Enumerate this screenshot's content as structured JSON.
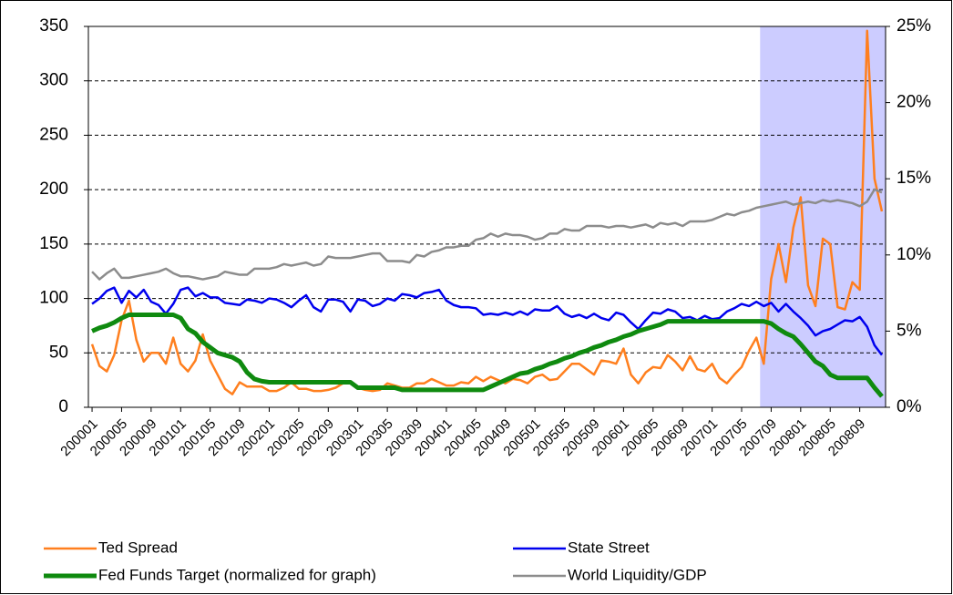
{
  "chart_data": {
    "type": "line",
    "categories": [
      "200001",
      null,
      null,
      null,
      "200005",
      null,
      null,
      null,
      "200009",
      null,
      null,
      null,
      "200101",
      null,
      null,
      null,
      "200105",
      null,
      null,
      null,
      "200109",
      null,
      null,
      null,
      "200201",
      null,
      null,
      null,
      "200205",
      null,
      null,
      null,
      "200209",
      null,
      null,
      null,
      "200301",
      null,
      null,
      null,
      "200305",
      null,
      null,
      null,
      "200309",
      null,
      null,
      null,
      "200401",
      null,
      null,
      null,
      "200405",
      null,
      null,
      null,
      "200409",
      null,
      null,
      null,
      "200501",
      null,
      null,
      null,
      "200505",
      null,
      null,
      null,
      "200509",
      null,
      null,
      null,
      "200601",
      null,
      null,
      null,
      "200605",
      null,
      null,
      null,
      "200609",
      null,
      null,
      null,
      "200701",
      null,
      null,
      null,
      "200705",
      null,
      null,
      null,
      "200709",
      null,
      null,
      null,
      "200801",
      null,
      null,
      null,
      "200805",
      null,
      null,
      null,
      "200809",
      null,
      null,
      null
    ],
    "series": [
      {
        "name": "Ted Spread",
        "color": "#ff7f1e",
        "width": 2.5,
        "values": [
          58,
          38,
          33,
          48,
          80,
          98,
          62,
          42,
          50,
          50,
          40,
          64,
          40,
          33,
          43,
          67,
          43,
          30,
          17,
          12,
          23,
          19,
          19,
          19,
          15,
          15,
          18,
          23,
          17,
          17,
          15,
          15,
          16,
          18,
          22,
          22,
          18,
          16,
          15,
          16,
          22,
          20,
          18,
          18,
          22,
          22,
          26,
          23,
          20,
          20,
          23,
          22,
          28,
          24,
          28,
          25,
          22,
          26,
          25,
          22,
          28,
          30,
          25,
          26,
          33,
          40,
          40,
          35,
          30,
          43,
          42,
          40,
          54,
          30,
          22,
          32,
          37,
          36,
          48,
          42,
          34,
          47,
          35,
          33,
          40,
          27,
          22,
          30,
          37,
          52,
          64,
          40,
          118,
          150,
          115,
          165,
          193,
          112,
          93,
          155,
          150,
          92,
          90,
          115,
          108,
          346,
          210,
          180
        ]
      },
      {
        "name": "State Street",
        "color": "#0000ee",
        "width": 2.5,
        "values": [
          95,
          100,
          107,
          110,
          96,
          107,
          101,
          108,
          97,
          94,
          86,
          95,
          108,
          110,
          102,
          105,
          101,
          101,
          96,
          95,
          94,
          99,
          98,
          96,
          100,
          99,
          96,
          92,
          98,
          103,
          92,
          88,
          99,
          99,
          97,
          88,
          99,
          98,
          93,
          95,
          100,
          98,
          104,
          103,
          101,
          105,
          106,
          108,
          98,
          94,
          92,
          92,
          91,
          85,
          86,
          85,
          87,
          85,
          88,
          85,
          90,
          89,
          89,
          93,
          86,
          83,
          85,
          82,
          86,
          82,
          80,
          87,
          85,
          78,
          72,
          80,
          87,
          86,
          90,
          88,
          82,
          83,
          80,
          84,
          81,
          82,
          88,
          91,
          95,
          93,
          97,
          93,
          96,
          88,
          95,
          88,
          82,
          75,
          66,
          70,
          72,
          76,
          80,
          79,
          83,
          74,
          57,
          48
        ]
      },
      {
        "name": "Fed Funds Target (normalized for graph)",
        "color": "#0f8a0f",
        "width": 5,
        "values": [
          70,
          73,
          75,
          78,
          82,
          85,
          85,
          85,
          85,
          85,
          85,
          85,
          82,
          72,
          68,
          60,
          55,
          50,
          48,
          46,
          42,
          32,
          26,
          24,
          23,
          23,
          23,
          23,
          23,
          23,
          23,
          23,
          23,
          23,
          23,
          23,
          18,
          18,
          18,
          18,
          18,
          18,
          16,
          16,
          16,
          16,
          16,
          16,
          16,
          16,
          16,
          16,
          16,
          16,
          19,
          22,
          25,
          28,
          31,
          32,
          35,
          37,
          40,
          42,
          45,
          47,
          50,
          52,
          55,
          57,
          60,
          62,
          65,
          67,
          70,
          72,
          74,
          76,
          79,
          79,
          79,
          79,
          79,
          79,
          79,
          79,
          79,
          79,
          79,
          79,
          79,
          79,
          77,
          72,
          68,
          65,
          58,
          50,
          42,
          38,
          30,
          27,
          27,
          27,
          27,
          27,
          18,
          10
        ]
      },
      {
        "name": "World Liquidity/GDP",
        "color": "#8c8c8c",
        "width": 2.5,
        "axis": "y2",
        "values": [
          8.9,
          8.4,
          8.8,
          9.1,
          8.5,
          8.5,
          8.6,
          8.7,
          8.8,
          8.9,
          9.1,
          8.8,
          8.6,
          8.6,
          8.5,
          8.4,
          8.5,
          8.6,
          8.9,
          8.8,
          8.7,
          8.7,
          9.1,
          9.1,
          9.1,
          9.2,
          9.4,
          9.3,
          9.4,
          9.5,
          9.3,
          9.4,
          9.9,
          9.8,
          9.8,
          9.8,
          9.9,
          10.0,
          10.1,
          10.1,
          9.6,
          9.6,
          9.6,
          9.5,
          10.0,
          9.9,
          10.2,
          10.3,
          10.5,
          10.5,
          10.6,
          10.6,
          11.0,
          11.1,
          11.4,
          11.2,
          11.4,
          11.3,
          11.3,
          11.2,
          11.0,
          11.1,
          11.4,
          11.4,
          11.7,
          11.6,
          11.6,
          11.9,
          11.9,
          11.9,
          11.8,
          11.9,
          11.9,
          11.8,
          11.9,
          12.0,
          11.8,
          12.1,
          12.0,
          12.1,
          11.9,
          12.2,
          12.2,
          12.2,
          12.3,
          12.5,
          12.7,
          12.6,
          12.8,
          12.9,
          13.1,
          13.2,
          13.3,
          13.4,
          13.5,
          13.3,
          13.4,
          13.5,
          13.4,
          13.6,
          13.5,
          13.6,
          13.5,
          13.4,
          13.2,
          13.5,
          14.3,
          14.1
        ]
      }
    ],
    "ylim": [
      0,
      350
    ],
    "yticks": [
      0,
      50,
      100,
      150,
      200,
      250,
      300,
      350
    ],
    "y2lim": [
      0,
      25
    ],
    "y2ticks": [
      {
        "value": 0,
        "label": "0%"
      },
      {
        "value": 5,
        "label": "5%"
      },
      {
        "value": 10,
        "label": "10%"
      },
      {
        "value": 15,
        "label": "15%"
      },
      {
        "value": 20,
        "label": "20%"
      },
      {
        "value": 25,
        "label": "25%"
      }
    ],
    "grid": true,
    "highlight": {
      "from": 91,
      "color": "#ccccff"
    },
    "legend": "bottom"
  }
}
